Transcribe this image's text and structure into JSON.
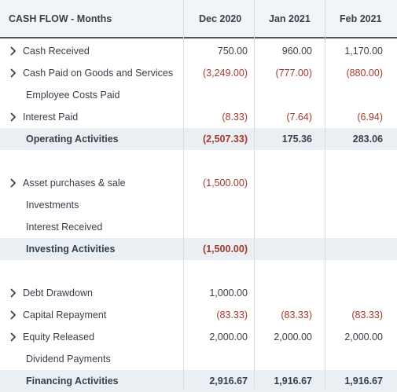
{
  "header": {
    "title": "CASH FLOW - Months",
    "columns": [
      "Dec 2020",
      "Jan 2021",
      "Feb 2021"
    ]
  },
  "rows": [
    {
      "label": "Cash Received",
      "expandable": true,
      "total": false,
      "values": [
        "750.00",
        "960.00",
        "1,170.00"
      ],
      "negative": [
        false,
        false,
        false
      ]
    },
    {
      "label": "Cash Paid on Goods and Services",
      "expandable": true,
      "total": false,
      "values": [
        "(3,249.00)",
        "(777.00)",
        "(880.00)"
      ],
      "negative": [
        true,
        true,
        true
      ]
    },
    {
      "label": "Employee Costs Paid",
      "expandable": false,
      "total": false,
      "values": [
        "",
        "",
        ""
      ],
      "negative": [
        false,
        false,
        false
      ]
    },
    {
      "label": "Interest Paid",
      "expandable": true,
      "total": false,
      "values": [
        "(8.33)",
        "(7.64)",
        "(6.94)"
      ],
      "negative": [
        true,
        true,
        true
      ]
    },
    {
      "label": "Operating Activities",
      "expandable": false,
      "total": true,
      "values": [
        "(2,507.33)",
        "175.36",
        "283.06"
      ],
      "negative": [
        true,
        false,
        false
      ]
    },
    {
      "spacer": true
    },
    {
      "label": "Asset purchases & sale",
      "expandable": true,
      "total": false,
      "values": [
        "(1,500.00)",
        "",
        ""
      ],
      "negative": [
        true,
        false,
        false
      ]
    },
    {
      "label": "Investments",
      "expandable": false,
      "total": false,
      "values": [
        "",
        "",
        ""
      ],
      "negative": [
        false,
        false,
        false
      ]
    },
    {
      "label": "Interest Received",
      "expandable": false,
      "total": false,
      "values": [
        "",
        "",
        ""
      ],
      "negative": [
        false,
        false,
        false
      ]
    },
    {
      "label": "Investing Activities",
      "expandable": false,
      "total": true,
      "values": [
        "(1,500.00)",
        "",
        ""
      ],
      "negative": [
        true,
        false,
        false
      ]
    },
    {
      "spacer": true
    },
    {
      "label": "Debt Drawdown",
      "expandable": true,
      "total": false,
      "values": [
        "1,000.00",
        "",
        ""
      ],
      "negative": [
        false,
        false,
        false
      ]
    },
    {
      "label": "Capital Repayment",
      "expandable": true,
      "total": false,
      "values": [
        "(83.33)",
        "(83.33)",
        "(83.33)"
      ],
      "negative": [
        true,
        true,
        true
      ]
    },
    {
      "label": "Equity Released",
      "expandable": true,
      "total": false,
      "values": [
        "2,000.00",
        "2,000.00",
        "2,000.00"
      ],
      "negative": [
        false,
        false,
        false
      ]
    },
    {
      "label": "Dividend Payments",
      "expandable": false,
      "total": false,
      "values": [
        "",
        "",
        ""
      ],
      "negative": [
        false,
        false,
        false
      ]
    },
    {
      "label": "Financing Activities",
      "expandable": false,
      "total": true,
      "values": [
        "2,916.67",
        "1,916.67",
        "1,916.67"
      ],
      "negative": [
        false,
        false,
        false
      ]
    }
  ],
  "colors": {
    "negative": "#a33a2e",
    "header_bg": "#f2f5f8",
    "total_bg": "#eaeff3"
  },
  "icons": {
    "expand": "chevron-right-icon"
  }
}
